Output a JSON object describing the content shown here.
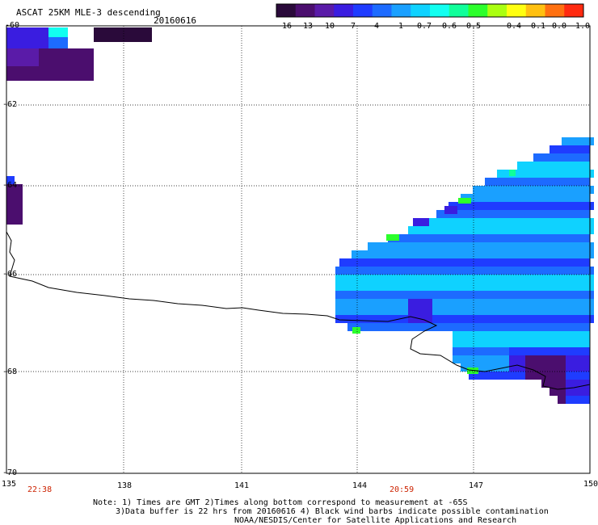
{
  "header": {
    "title": "ASCAT 25KM MLE-3 descending",
    "date": "20160616"
  },
  "colorbar": {
    "colors": [
      "#2a0a3a",
      "#4b0e6e",
      "#5a1ba8",
      "#3a1de0",
      "#1f3cff",
      "#1d6bff",
      "#1aa0ff",
      "#0fd2ff",
      "#12fff0",
      "#10ff9a",
      "#2cff2c",
      "#aaff10",
      "#ffff10",
      "#ffc010",
      "#ff7010",
      "#ff2a10"
    ],
    "labels": [
      "-16",
      "-13",
      "-10",
      "-7",
      "-4",
      "-1",
      "-0.7",
      "-0.6",
      "-0.5",
      "-0.4",
      "-0.1",
      "0.0",
      "1.0"
    ]
  },
  "axes": {
    "x_ticks": [
      "135",
      "138",
      "141",
      "144",
      "147",
      "150"
    ],
    "y_ticks": [
      "-60",
      "-62",
      "-64",
      "-66",
      "-68",
      "-70"
    ]
  },
  "times": [
    "22:38",
    "20:59"
  ],
  "notes": [
    "Note: 1) Times are GMT 2)Times along bottom correspond to measurement at -65S",
    "3)Data buffer is 22 hrs from 20160616 4) Black wind barbs indicate possible contamination",
    "NOAA/NESDIS/Center for Satellite Applications and Research"
  ]
}
